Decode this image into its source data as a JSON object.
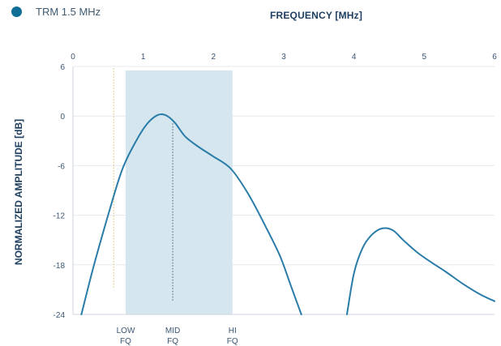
{
  "chart_data": {
    "type": "line",
    "title": "",
    "xlabel": "FREQUENCY [MHz]",
    "ylabel": "NORMALIZED AMPLITUDE [dB]",
    "xlim": [
      0,
      6
    ],
    "ylim": [
      -24,
      6
    ],
    "x_ticks": [
      "0",
      "1",
      "2",
      "3",
      "4",
      "5",
      "6"
    ],
    "y_ticks": [
      "6",
      "0",
      "-6",
      "-12",
      "-18",
      "-24"
    ],
    "x_axis_position": "top",
    "grid": true,
    "legend": "top-left",
    "series": [
      {
        "name": "TRM 1.5 MHz",
        "color": "#2a7ca8",
        "segments": [
          {
            "x": [
              0.12,
              0.3,
              0.5,
              0.7,
              0.9,
              1.05,
              1.2,
              1.32,
              1.45,
              1.6,
              1.8,
              2.0,
              2.25,
              2.5,
              2.75,
              2.95,
              3.1,
              3.25
            ],
            "y": [
              -24,
              -18,
              -12,
              -6.5,
              -3,
              -1,
              0.1,
              0.1,
              -0.8,
              -2.5,
              -3.8,
              -4.9,
              -6.4,
              -9.5,
              -13.5,
              -17,
              -20.5,
              -24
            ]
          },
          {
            "x": [
              3.9,
              4.0,
              4.12,
              4.25,
              4.4,
              4.55,
              4.7,
              4.9,
              5.1,
              5.3,
              5.55,
              5.8,
              6.0
            ],
            "y": [
              -24,
              -19,
              -16,
              -14.4,
              -13.6,
              -13.8,
              -15,
              -16.5,
              -17.7,
              -18.8,
              -20.3,
              -21.6,
              -22.4
            ]
          }
        ]
      }
    ],
    "shaded_band": {
      "x_start": 0.75,
      "x_end": 2.27,
      "color": "#d5e6ef"
    },
    "markers": [
      {
        "label": [
          "LOW",
          "FQ"
        ],
        "x": 0.75
      },
      {
        "label": [
          "MID",
          "FQ"
        ],
        "x": 1.42
      },
      {
        "label": [
          "HI",
          "FQ"
        ],
        "x": 2.27
      }
    ],
    "reference_lines": [
      {
        "x": 0.58,
        "y_top": 5.8,
        "y_bottom": -21,
        "style": "dotted",
        "color": "#d9c468"
      },
      {
        "x": 1.42,
        "y_top": -0.9,
        "y_bottom": -22.5,
        "style": "dotted",
        "color": "#4c5d6e"
      }
    ]
  }
}
